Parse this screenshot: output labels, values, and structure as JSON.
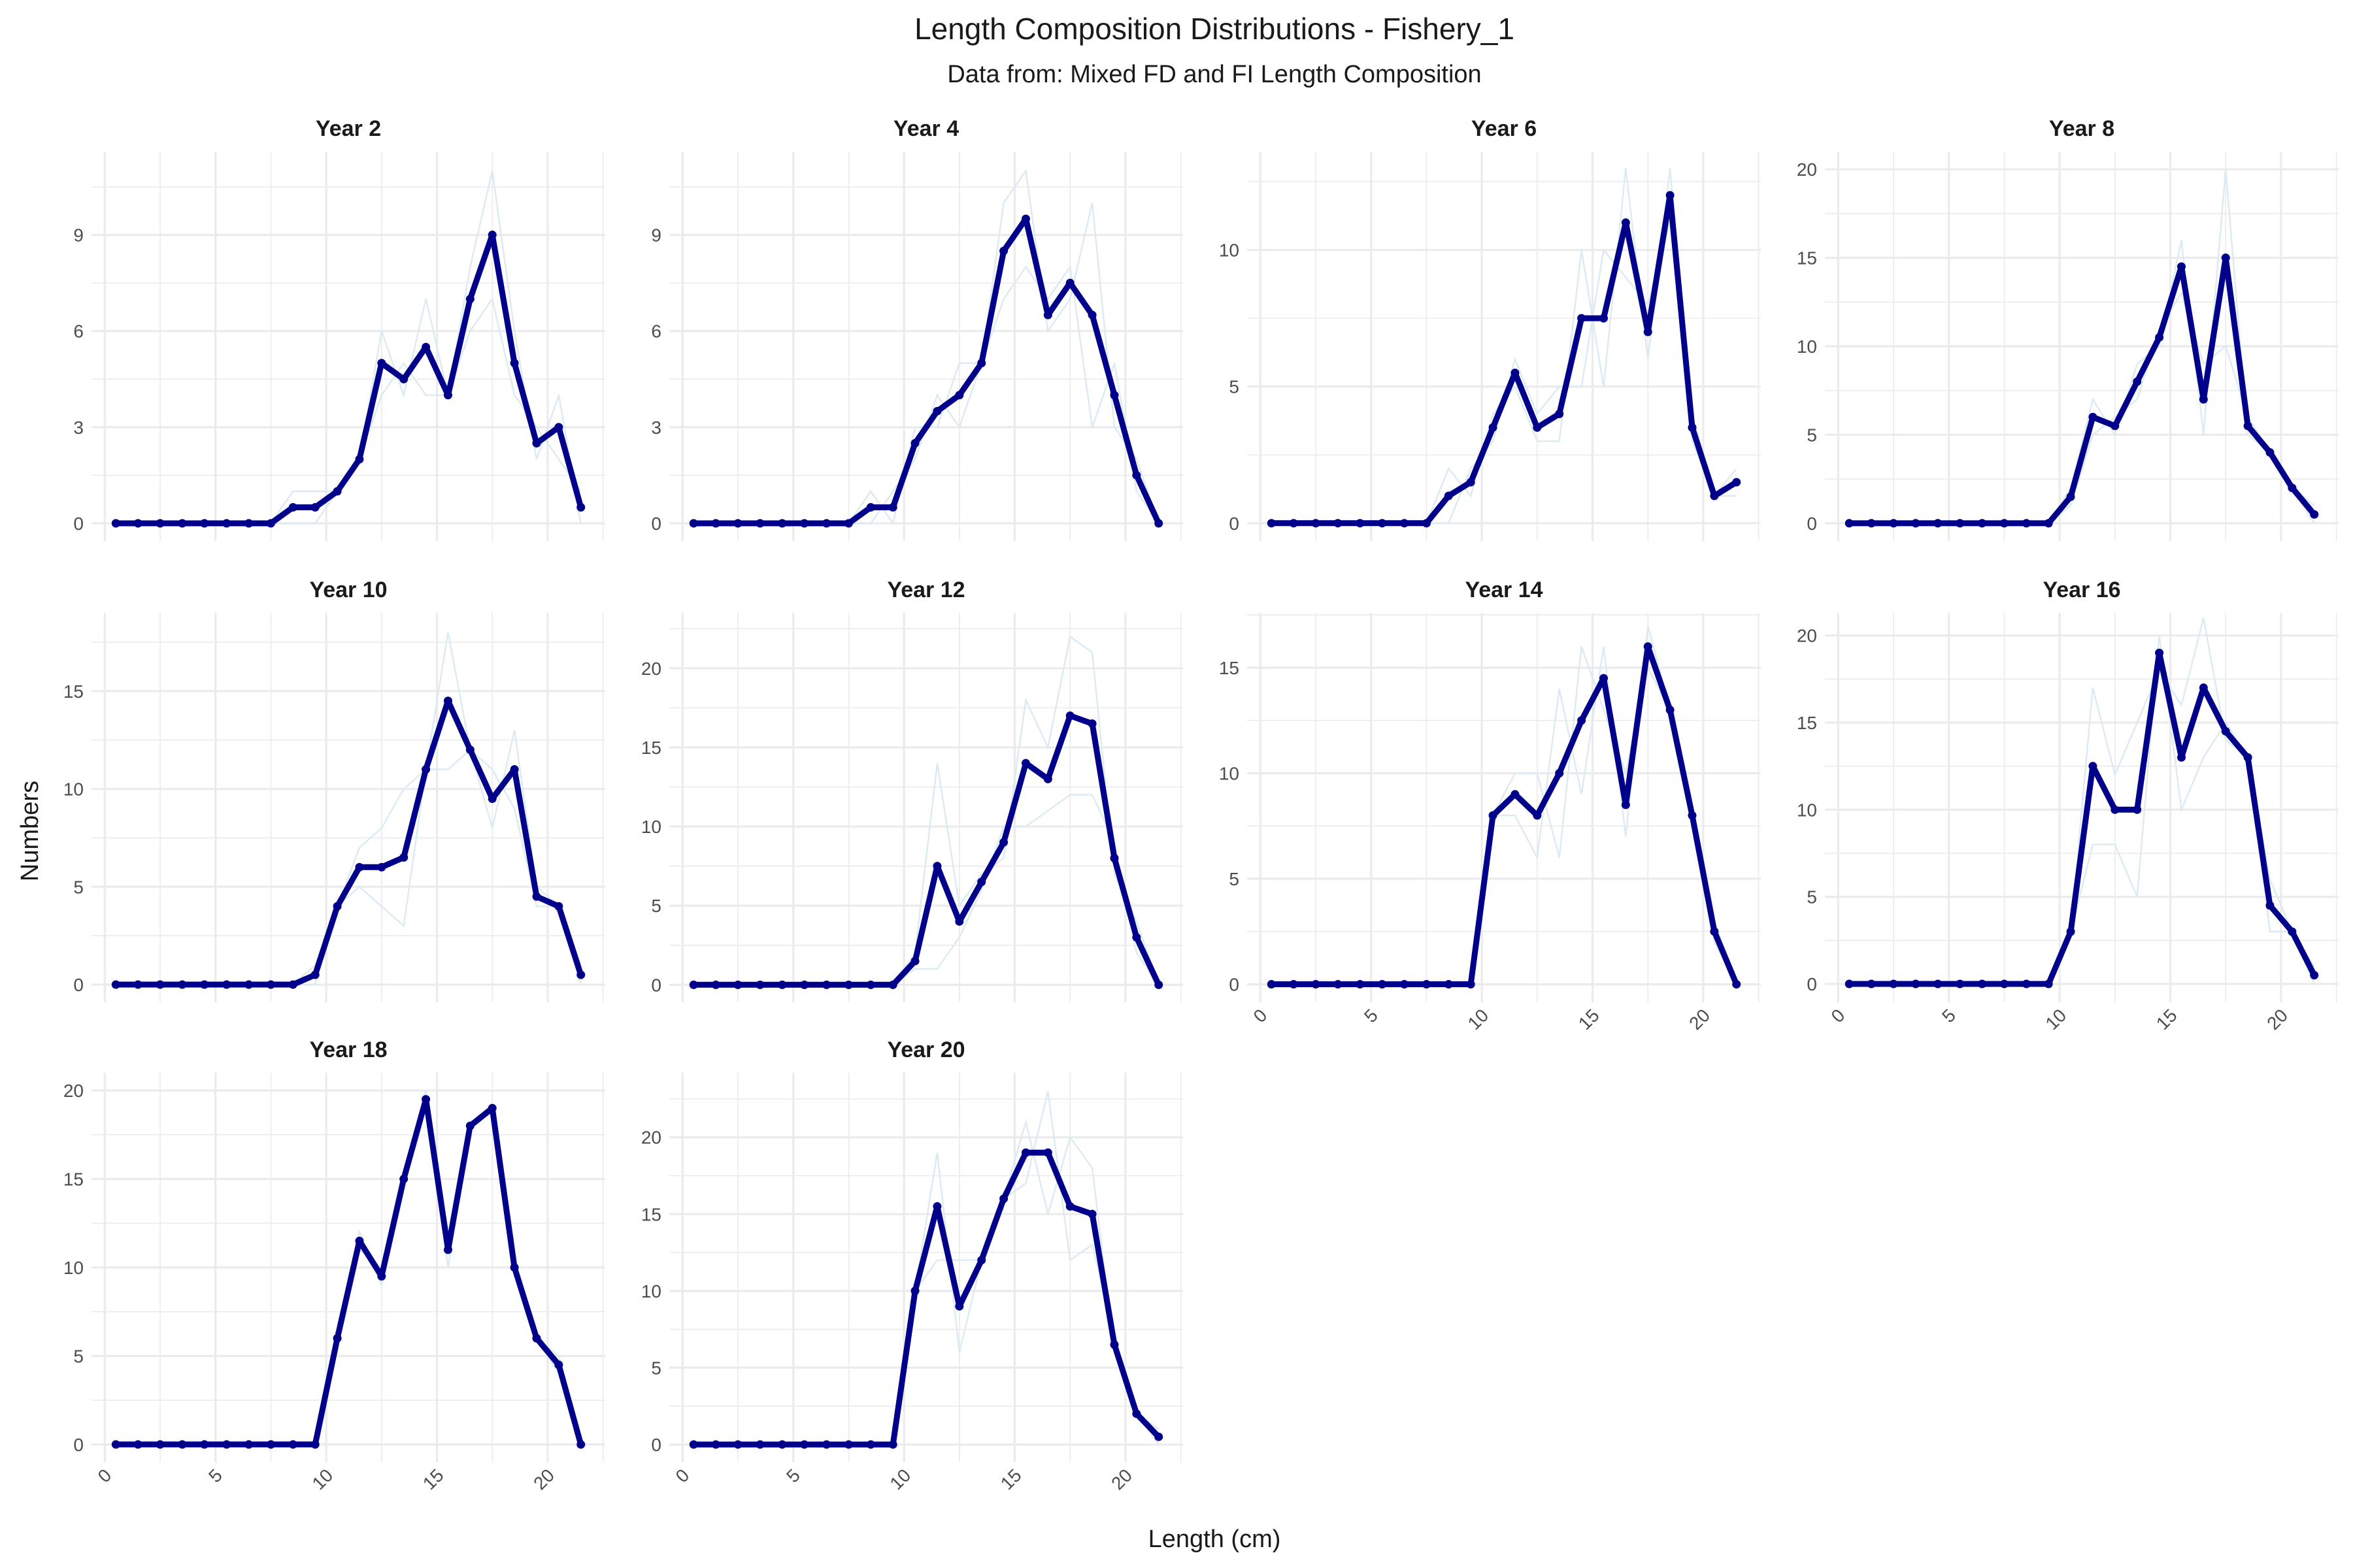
{
  "title": "Length Composition Distributions - Fishery_1",
  "subtitle": "Data from: Mixed FD and FI Length Composition",
  "chart_data": {
    "type": "line",
    "xlabel": "Length (cm)",
    "ylabel": "Numbers",
    "x": [
      0.5,
      1.5,
      2.5,
      3.5,
      4.5,
      5.5,
      6.5,
      7.5,
      8.5,
      9.5,
      10.5,
      11.5,
      12.5,
      13.5,
      14.5,
      15.5,
      16.5,
      17.5,
      18.5,
      19.5,
      20.5,
      21.5
    ],
    "xlim": [
      -0.6,
      22.6
    ],
    "x_ticks": [
      0,
      5,
      10,
      15,
      20
    ],
    "x_tick_labels": [
      "0",
      "5",
      "10",
      "15",
      "20"
    ],
    "grid": true,
    "colors": {
      "mean_line": "#00008b",
      "sample_lines": "#dbeaf3",
      "grid": "#ebebeb"
    },
    "panels": [
      {
        "label": "Year 2",
        "ylim": [
          -0.55,
          11.6
        ],
        "y_ticks": [
          0,
          3,
          6,
          9
        ],
        "y_tick_labels": [
          "0",
          "3",
          "6",
          "9"
        ],
        "mean": [
          0,
          0,
          0,
          0,
          0,
          0,
          0,
          0,
          0.5,
          0.5,
          1,
          2,
          5,
          4.5,
          5.5,
          4,
          7,
          9,
          5,
          2.5,
          3,
          0.5
        ],
        "samples": [
          [
            0,
            0,
            0,
            0,
            0,
            0,
            0,
            0,
            1,
            1,
            1,
            2,
            6,
            4,
            7,
            4,
            8,
            11,
            6,
            2,
            4,
            0
          ],
          [
            0,
            0,
            0,
            0,
            0,
            0,
            0,
            0,
            0,
            0,
            1,
            2,
            4,
            5,
            4,
            4,
            6,
            7,
            4,
            3,
            2,
            1
          ]
        ]
      },
      {
        "label": "Year 4",
        "ylim": [
          -0.55,
          11.6
        ],
        "y_ticks": [
          0,
          3,
          6,
          9
        ],
        "y_tick_labels": [
          "0",
          "3",
          "6",
          "9"
        ],
        "mean": [
          0,
          0,
          0,
          0,
          0,
          0,
          0,
          0,
          0.5,
          0.5,
          2.5,
          3.5,
          4,
          5,
          8.5,
          9.5,
          6.5,
          7.5,
          6.5,
          4,
          1.5,
          0
        ],
        "samples": [
          [
            0,
            0,
            0,
            0,
            0,
            0,
            0,
            0,
            1,
            0,
            3,
            3,
            5,
            5,
            10,
            11,
            6,
            7,
            10,
            3,
            2,
            0
          ],
          [
            0,
            0,
            0,
            0,
            0,
            0,
            0,
            0,
            0,
            1,
            2,
            4,
            3,
            5,
            7,
            8,
            7,
            8,
            3,
            5,
            1,
            0
          ]
        ]
      },
      {
        "label": "Year 6",
        "ylim": [
          -0.65,
          13.6
        ],
        "y_ticks": [
          0,
          5,
          10
        ],
        "y_tick_labels": [
          "0",
          "5",
          "10"
        ],
        "mean": [
          0,
          0,
          0,
          0,
          0,
          0,
          0,
          0,
          1,
          1.5,
          3.5,
          5.5,
          3.5,
          4,
          7.5,
          7.5,
          11,
          7,
          12,
          3.5,
          1,
          1.5
        ],
        "samples": [
          [
            0,
            0,
            0,
            0,
            0,
            0,
            0,
            0,
            2,
            1,
            4,
            5,
            3,
            3,
            10,
            5,
            13,
            6,
            13,
            3,
            1,
            1
          ],
          [
            0,
            0,
            0,
            0,
            0,
            0,
            0,
            0,
            0,
            2,
            3,
            6,
            4,
            5,
            5,
            10,
            9,
            8,
            11,
            4,
            1,
            2
          ]
        ]
      },
      {
        "label": "Year 8",
        "ylim": [
          -1,
          21
        ],
        "y_ticks": [
          0,
          5,
          10,
          15,
          20
        ],
        "y_tick_labels": [
          "0",
          "5",
          "10",
          "15",
          "20"
        ],
        "mean": [
          0,
          0,
          0,
          0,
          0,
          0,
          0,
          0,
          0,
          0,
          1.5,
          6,
          5.5,
          8,
          10.5,
          14.5,
          7,
          15,
          5.5,
          4,
          2,
          0.5
        ],
        "samples": [
          [
            0,
            0,
            0,
            0,
            0,
            0,
            0,
            0,
            0,
            0,
            2,
            7,
            5,
            9,
            10,
            16,
            5,
            20,
            5,
            4,
            2,
            0
          ],
          [
            0,
            0,
            0,
            0,
            0,
            0,
            0,
            0,
            0,
            0,
            1,
            5,
            6,
            7,
            11,
            13,
            9,
            10,
            6,
            4,
            2,
            1
          ]
        ]
      },
      {
        "label": "Year 10",
        "ylim": [
          -0.9,
          19
        ],
        "y_ticks": [
          0,
          5,
          10,
          15
        ],
        "y_tick_labels": [
          "0",
          "5",
          "10",
          "15"
        ],
        "mean": [
          0,
          0,
          0,
          0,
          0,
          0,
          0,
          0,
          0,
          0.5,
          4,
          6,
          6,
          6.5,
          11,
          14.5,
          12,
          9.5,
          11,
          4.5,
          4,
          0.5
        ],
        "samples": [
          [
            0,
            0,
            0,
            0,
            0,
            0,
            0,
            0,
            0,
            1,
            4,
            7,
            8,
            10,
            11,
            18,
            12,
            8,
            13,
            5,
            4,
            0
          ],
          [
            0,
            0,
            0,
            0,
            0,
            0,
            0,
            0,
            0,
            0,
            4,
            5,
            4,
            3,
            11,
            11,
            12,
            11,
            9,
            4,
            4,
            1
          ]
        ]
      },
      {
        "label": "Year 12",
        "ylim": [
          -1.1,
          23.5
        ],
        "y_ticks": [
          0,
          5,
          10,
          15,
          20
        ],
        "y_tick_labels": [
          "0",
          "5",
          "10",
          "15",
          "20"
        ],
        "mean": [
          0,
          0,
          0,
          0,
          0,
          0,
          0,
          0,
          0,
          0,
          1.5,
          7.5,
          4,
          6.5,
          9,
          14,
          13,
          17,
          16.5,
          8,
          3,
          0
        ],
        "samples": [
          [
            0,
            0,
            0,
            0,
            0,
            0,
            0,
            0,
            0,
            0,
            2,
            14,
            5,
            7,
            8,
            18,
            15,
            22,
            21,
            7,
            4,
            0
          ],
          [
            0,
            0,
            0,
            0,
            0,
            0,
            0,
            0,
            0,
            0,
            1,
            1,
            3,
            6,
            10,
            10,
            11,
            12,
            12,
            9,
            2,
            0
          ]
        ]
      },
      {
        "label": "Year 14",
        "ylim": [
          -0.85,
          17.6
        ],
        "y_ticks": [
          0,
          5,
          10,
          15
        ],
        "y_tick_labels": [
          "0",
          "5",
          "10",
          "15"
        ],
        "mean": [
          0,
          0,
          0,
          0,
          0,
          0,
          0,
          0,
          0,
          0,
          8,
          9,
          8,
          10,
          12.5,
          14.5,
          8.5,
          16,
          13,
          8,
          2.5,
          0
        ],
        "samples": [
          [
            0,
            0,
            0,
            0,
            0,
            0,
            0,
            0,
            0,
            0,
            8,
            8,
            6,
            14,
            9,
            16,
            7,
            17,
            13,
            8,
            3,
            0
          ],
          [
            0,
            0,
            0,
            0,
            0,
            0,
            0,
            0,
            0,
            0,
            8,
            10,
            10,
            6,
            16,
            13,
            10,
            15,
            13,
            8,
            2,
            0
          ]
        ]
      },
      {
        "label": "Year 16",
        "ylim": [
          -1.05,
          21.3
        ],
        "y_ticks": [
          0,
          5,
          10,
          15,
          20
        ],
        "y_tick_labels": [
          "0",
          "5",
          "10",
          "15",
          "20"
        ],
        "mean": [
          0,
          0,
          0,
          0,
          0,
          0,
          0,
          0,
          0,
          0,
          3,
          12.5,
          10,
          10,
          19,
          13,
          17,
          14.5,
          13,
          4.5,
          3,
          0.5
        ],
        "samples": [
          [
            0,
            0,
            0,
            0,
            0,
            0,
            0,
            0,
            0,
            0,
            3,
            17,
            12,
            15,
            18,
            16,
            21,
            14,
            13,
            3,
            3,
            1
          ],
          [
            0,
            0,
            0,
            0,
            0,
            0,
            0,
            0,
            0,
            0,
            3,
            8,
            8,
            5,
            20,
            10,
            13,
            15,
            13,
            6,
            3,
            0
          ]
        ]
      },
      {
        "label": "Year 18",
        "ylim": [
          -1,
          21
        ],
        "y_ticks": [
          0,
          5,
          10,
          15,
          20
        ],
        "y_tick_labels": [
          "0",
          "5",
          "10",
          "15",
          "20"
        ],
        "mean": [
          0,
          0,
          0,
          0,
          0,
          0,
          0,
          0,
          0,
          0,
          6,
          11.5,
          9.5,
          15,
          19.5,
          11,
          18,
          19,
          10,
          6,
          4.5,
          0
        ],
        "samples": [
          [
            0,
            0,
            0,
            0,
            0,
            0,
            0,
            0,
            0,
            0,
            6,
            12,
            9,
            15,
            20,
            10,
            18,
            19,
            10,
            6,
            5,
            0
          ],
          [
            0,
            0,
            0,
            0,
            0,
            0,
            0,
            0,
            0,
            0,
            6,
            11,
            10,
            15,
            19,
            12,
            18,
            19,
            10,
            6,
            4,
            0
          ]
        ]
      },
      {
        "label": "Year 20",
        "ylim": [
          -1.15,
          24.2
        ],
        "y_ticks": [
          0,
          5,
          10,
          15,
          20
        ],
        "y_tick_labels": [
          "0",
          "5",
          "10",
          "15",
          "20"
        ],
        "mean": [
          0,
          0,
          0,
          0,
          0,
          0,
          0,
          0,
          0,
          0,
          10,
          15.5,
          9,
          12,
          16,
          19,
          19,
          15.5,
          15,
          6.5,
          2,
          0.5
        ],
        "samples": [
          [
            0,
            0,
            0,
            0,
            0,
            0,
            0,
            0,
            0,
            0,
            10,
            19,
            6,
            12,
            16,
            21,
            15,
            20,
            18,
            6,
            2,
            0
          ],
          [
            0,
            0,
            0,
            0,
            0,
            0,
            0,
            0,
            0,
            0,
            10,
            12,
            12,
            12,
            16,
            17,
            23,
            12,
            13,
            7,
            2,
            1
          ]
        ]
      }
    ]
  }
}
